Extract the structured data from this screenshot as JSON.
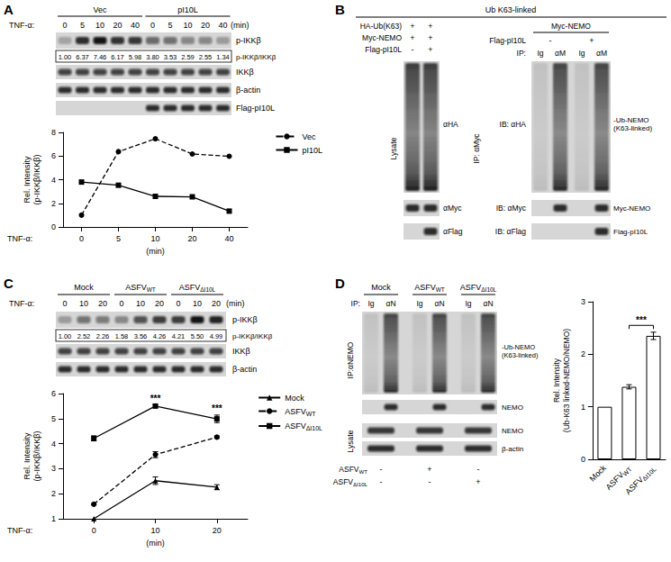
{
  "blots": {
    "A": {
      "letter": "A",
      "groups": [
        "Vec",
        "pI10L"
      ],
      "time_label": "TNF-α:",
      "times": [
        0,
        5,
        10,
        20,
        40,
        0,
        5,
        10,
        20,
        40
      ],
      "unit": "(min)",
      "ratios": [
        "1.00",
        "6.37",
        "7.46",
        "6.17",
        "5.98",
        "3.80",
        "3.53",
        "2.59",
        "2.55",
        "1.34"
      ],
      "ratio_label": "p-IKKβ/IKKβ",
      "rows": [
        "p-IKKβ",
        "IKKβ",
        "β-actin",
        "Flag-pI10L"
      ]
    },
    "B": {
      "letter": "B",
      "header": "Ub K63-linked",
      "left": {
        "conditions": [
          {
            "label": "HA-Ub(K63)",
            "signs": [
              "+",
              "+"
            ]
          },
          {
            "label": "Myc-NEMO",
            "signs": [
              "+",
              "+"
            ]
          },
          {
            "label": "Flag-pI10L",
            "signs": [
              "-",
              "+"
            ]
          }
        ],
        "side_label": "Lysate",
        "blots": [
          "αHA",
          "αMyc",
          "αFlag"
        ]
      },
      "right": {
        "header": "Myc-NEMO",
        "conditions": [
          {
            "label": "Flag-pI10L",
            "signs": [
              "-",
              "+"
            ]
          }
        ],
        "ip_label": "IP:",
        "ip_lanes": [
          "Ig",
          "αM",
          "Ig",
          "αM"
        ],
        "side_label": "IP: αMyc",
        "blots": [
          {
            "ib": "IB: αHA",
            "band": "-Ub-NEMO\n(K63-linked)"
          },
          {
            "ib": "IB: αMyc",
            "band": "Myc-NEMO"
          },
          {
            "ib": "IB: αFlag",
            "band": "Flag-pI10L"
          }
        ]
      }
    },
    "C": {
      "letter": "C",
      "groups": [
        "Mock",
        {
          "text": "ASFVWT",
          "sub": "WT"
        },
        {
          "text": "ASFVΔI10L",
          "sub": "ΔI10L"
        }
      ],
      "time_label": "TNF-α:",
      "times": [
        0,
        10,
        20,
        0,
        10,
        20,
        0,
        10,
        20
      ],
      "unit": "(min)",
      "ratios": [
        "1.00",
        "2.52",
        "2.26",
        "1.58",
        "3.56",
        "4.26",
        "4.21",
        "5.50",
        "4.99"
      ],
      "ratio_label": "p-IKKβ/IKKβ",
      "rows": [
        "p-IKKβ",
        "IKKβ",
        "β-actin"
      ]
    },
    "D": {
      "letter": "D",
      "groups": [
        "Mock",
        {
          "text": "ASFVWT",
          "sub": "WT"
        },
        {
          "text": "ASFVΔI10L",
          "sub": "ΔI10L"
        }
      ],
      "ip_label": "IP:",
      "ip_lanes": [
        "Ig",
        "αN",
        "Ig",
        "αN",
        "Ig",
        "αN"
      ],
      "side_label": "IP:αNEMO",
      "ip_blots": [
        "-Ub-NEMO\n(K63-linked)",
        "NEMO"
      ],
      "lysate_label": "Lysate",
      "lysate_blots": [
        "NEMO",
        "β-actin"
      ],
      "conditions": [
        {
          "label": {
            "text": "ASFVWT",
            "sub": "WT"
          },
          "signs": [
            "-",
            "+",
            "-"
          ]
        },
        {
          "label": {
            "text": "ASFVΔI10L",
            "sub": "ΔI10L"
          },
          "signs": [
            "-",
            "-",
            "+"
          ]
        }
      ]
    }
  },
  "chart_data": [
    {
      "type": "line",
      "x_label": "TNF-α:",
      "x_unit": "(min)",
      "y_label": "Rel. Intensity\n(p-IKKβ/IKKβ)",
      "categories": [
        "0",
        "5",
        "10",
        "20",
        "40"
      ],
      "ylim": [
        0,
        8
      ],
      "yticks": [
        0,
        2,
        4,
        6,
        8
      ],
      "grid": false,
      "legend": "right",
      "series": [
        {
          "name": "Vec",
          "color": "#000000",
          "line_style": "dashed",
          "marker": "circle",
          "values": [
            1.0,
            6.37,
            7.46,
            6.17,
            5.98
          ]
        },
        {
          "name": "pI10L",
          "color": "#000000",
          "line_style": "solid",
          "marker": "square",
          "values": [
            3.8,
            3.53,
            2.59,
            2.55,
            1.34
          ]
        }
      ]
    },
    {
      "type": "line",
      "x_label": "TNF-α:",
      "x_unit": "(min)",
      "y_label": "Rel. Intensity\n(p-IKKβ/IKKβ)",
      "categories": [
        "0",
        "10",
        "20"
      ],
      "ylim": [
        1,
        6
      ],
      "yticks": [
        1,
        2,
        3,
        4,
        5,
        6
      ],
      "grid": false,
      "legend": "right",
      "series": [
        {
          "name": "Mock",
          "color": "#000000",
          "line_style": "solid",
          "marker": "triangle",
          "values": [
            1.0,
            2.52,
            2.26
          ],
          "errors": [
            0,
            0.15,
            0.1
          ]
        },
        {
          "name": "ASFVWT",
          "subscript": "WT",
          "color": "#000000",
          "line_style": "dashed",
          "marker": "circle",
          "values": [
            1.58,
            3.56,
            4.26
          ],
          "errors": [
            0.02,
            0.12,
            0.05
          ]
        },
        {
          "name": "ASFVΔI10L",
          "subscript": "ΔI10L",
          "color": "#000000",
          "line_style": "solid",
          "marker": "square",
          "values": [
            4.21,
            5.5,
            4.99
          ],
          "errors": [
            0.1,
            0.05,
            0.15
          ]
        }
      ],
      "annotations": [
        {
          "text": "***",
          "x": "10",
          "y": 5.6
        },
        {
          "text": "***",
          "x": "20",
          "y": 5.2
        }
      ]
    },
    {
      "type": "bar",
      "y_label": "Rel. Intensity\n(Ub-K63 linked-NEMO/NEMO)",
      "categories": [
        "Mock",
        "ASFVWT",
        "ASFVΔI10L"
      ],
      "subscripts": [
        null,
        "WT",
        "ΔI10L"
      ],
      "values": [
        1,
        1.38,
        2.35
      ],
      "errors": [
        0,
        0.04,
        0.07
      ],
      "color": "#ffffff",
      "ylim": [
        0,
        3
      ],
      "yticks": [
        0,
        1,
        2,
        3
      ],
      "grid": false,
      "annotations": [
        {
          "text": "***",
          "x": [
            "ASFVWT",
            "ASFVΔI10L"
          ],
          "y": 2.55
        }
      ]
    }
  ]
}
